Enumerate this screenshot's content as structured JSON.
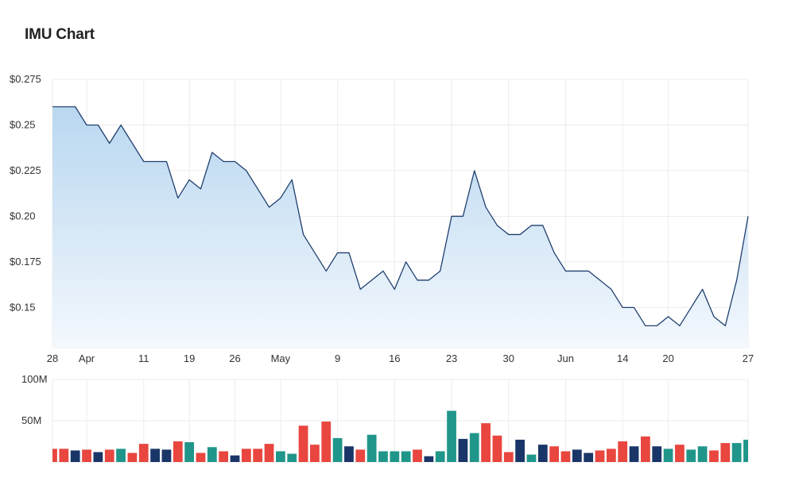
{
  "chart_data": {
    "title": "IMU Chart",
    "price": {
      "type": "area",
      "y_ticks": [
        {
          "value": 0.275,
          "label": "$0.275"
        },
        {
          "value": 0.25,
          "label": "$0.25"
        },
        {
          "value": 0.225,
          "label": "$0.225"
        },
        {
          "value": 0.2,
          "label": "$0.20"
        },
        {
          "value": 0.175,
          "label": "$0.175"
        },
        {
          "value": 0.15,
          "label": "$0.15"
        }
      ],
      "ylim": [
        0.128,
        0.275
      ],
      "x_ticks": [
        {
          "index": 0,
          "label": "28"
        },
        {
          "index": 3,
          "label": "Apr"
        },
        {
          "index": 8,
          "label": "11"
        },
        {
          "index": 12,
          "label": "19"
        },
        {
          "index": 16,
          "label": "26"
        },
        {
          "index": 20,
          "label": "May"
        },
        {
          "index": 25,
          "label": "9"
        },
        {
          "index": 30,
          "label": "16"
        },
        {
          "index": 35,
          "label": "23"
        },
        {
          "index": 40,
          "label": "30"
        },
        {
          "index": 45,
          "label": "Jun"
        },
        {
          "index": 50,
          "label": "14"
        },
        {
          "index": 54,
          "label": "20"
        },
        {
          "index": 61,
          "label": "27"
        }
      ],
      "values": [
        0.26,
        0.26,
        0.26,
        0.25,
        0.25,
        0.24,
        0.25,
        0.24,
        0.23,
        0.23,
        0.23,
        0.21,
        0.22,
        0.215,
        0.235,
        0.23,
        0.23,
        0.225,
        0.215,
        0.205,
        0.21,
        0.22,
        0.19,
        0.18,
        0.17,
        0.18,
        0.18,
        0.16,
        0.165,
        0.17,
        0.16,
        0.175,
        0.165,
        0.165,
        0.17,
        0.2,
        0.2,
        0.225,
        0.205,
        0.195,
        0.19,
        0.19,
        0.195,
        0.195,
        0.18,
        0.17,
        0.17,
        0.17,
        0.165,
        0.16,
        0.15,
        0.15,
        0.14,
        0.14,
        0.145,
        0.14,
        0.15,
        0.16,
        0.145,
        0.14,
        0.165,
        0.2
      ],
      "colors": {
        "line": "#1f3f6e",
        "fill_top": "#b9d7f0",
        "fill_bottom": "#f3f8fd"
      }
    },
    "volume": {
      "type": "bar",
      "y_ticks": [
        {
          "value": 100,
          "label": "100M"
        },
        {
          "value": 50,
          "label": "50M"
        }
      ],
      "unit": "M",
      "ylim": [
        0,
        100
      ],
      "values": [
        16,
        16,
        14,
        15,
        12,
        15,
        16,
        11,
        22,
        16,
        15,
        25,
        24,
        11,
        18,
        13,
        8,
        16,
        16,
        22,
        13,
        10,
        44,
        21,
        49,
        29,
        19,
        15,
        33,
        13,
        13,
        13,
        15,
        7,
        13,
        62,
        28,
        35,
        47,
        32,
        12,
        27,
        9,
        21,
        19,
        13,
        15,
        11,
        14,
        16,
        25,
        19,
        31,
        19,
        16,
        21,
        15,
        19,
        14,
        23,
        23,
        27
      ],
      "colors": [
        "red",
        "red",
        "navy",
        "red",
        "navy",
        "red",
        "teal",
        "red",
        "red",
        "navy",
        "navy",
        "red",
        "teal",
        "red",
        "teal",
        "red",
        "navy",
        "red",
        "red",
        "red",
        "teal",
        "teal",
        "red",
        "red",
        "red",
        "teal",
        "navy",
        "red",
        "teal",
        "teal",
        "teal",
        "teal",
        "red",
        "navy",
        "teal",
        "teal",
        "navy",
        "teal",
        "red",
        "red",
        "red",
        "navy",
        "teal",
        "navy",
        "red",
        "red",
        "navy",
        "navy",
        "red",
        "red",
        "red",
        "navy",
        "red",
        "navy",
        "teal",
        "red",
        "teal",
        "teal",
        "red",
        "red",
        "teal",
        "teal"
      ],
      "palette": {
        "red": "#e8463f",
        "navy": "#1a3567",
        "teal": "#20968a"
      }
    },
    "grid": true,
    "legend": "none"
  }
}
